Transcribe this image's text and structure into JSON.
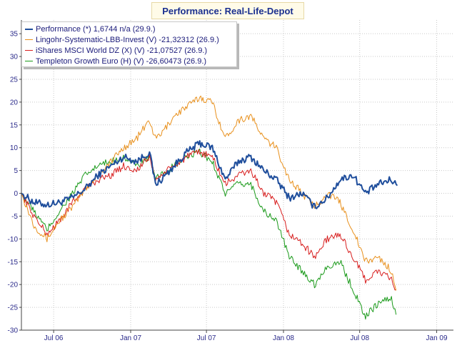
{
  "chart_data": {
    "type": "line",
    "title": "Performance: Real-Life-Depot",
    "ylim": [
      -30,
      38
    ],
    "yticks": [
      35,
      30,
      25,
      20,
      15,
      10,
      5,
      0,
      -5,
      -10,
      -15,
      -20,
      -25,
      -30
    ],
    "xlim": [
      "2006-04-15",
      "2009-02-10"
    ],
    "xticks": [
      {
        "label": "Jul 06",
        "date": "2006-07-01"
      },
      {
        "label": "Jan 07",
        "date": "2007-01-01"
      },
      {
        "label": "Jul 07",
        "date": "2007-07-01"
      },
      {
        "label": "Jan 08",
        "date": "2008-01-01"
      },
      {
        "label": "Jul 08",
        "date": "2008-07-01"
      },
      {
        "label": "Jan 09",
        "date": "2009-01-01"
      }
    ],
    "grid": true,
    "legend_position": "top-left",
    "series": [
      {
        "name": "Performance (*) 1,6744 n/a (29.9.)",
        "color": "#1f4e9c",
        "points": [
          [
            "2006-04-15",
            0
          ],
          [
            "2006-05-15",
            -2
          ],
          [
            "2006-06-15",
            -2.5
          ],
          [
            "2006-07-15",
            -2
          ],
          [
            "2006-08-15",
            -1
          ],
          [
            "2006-09-15",
            1
          ],
          [
            "2006-10-15",
            4
          ],
          [
            "2006-11-15",
            6
          ],
          [
            "2006-12-15",
            8
          ],
          [
            "2007-01-15",
            7
          ],
          [
            "2007-02-15",
            9
          ],
          [
            "2007-03-01",
            2
          ],
          [
            "2007-03-15",
            3
          ],
          [
            "2007-04-15",
            6
          ],
          [
            "2007-05-15",
            9
          ],
          [
            "2007-06-15",
            11
          ],
          [
            "2007-07-15",
            10
          ],
          [
            "2007-08-15",
            3
          ],
          [
            "2007-09-15",
            7
          ],
          [
            "2007-10-15",
            8
          ],
          [
            "2007-11-15",
            5
          ],
          [
            "2007-12-15",
            3
          ],
          [
            "2008-01-15",
            -1
          ],
          [
            "2008-02-15",
            0
          ],
          [
            "2008-03-15",
            -3
          ],
          [
            "2008-04-15",
            -1
          ],
          [
            "2008-05-15",
            3
          ],
          [
            "2008-06-15",
            4
          ],
          [
            "2008-07-15",
            0
          ],
          [
            "2008-08-15",
            2
          ],
          [
            "2008-09-15",
            3
          ],
          [
            "2008-09-29",
            1.7
          ]
        ]
      },
      {
        "name": "Lingohr-Systematic-LBB-Invest (V) -21,32312 (26.9.)",
        "color": "#e8901c",
        "points": [
          [
            "2006-04-15",
            0
          ],
          [
            "2006-05-15",
            -7
          ],
          [
            "2006-06-15",
            -10
          ],
          [
            "2006-07-15",
            -6
          ],
          [
            "2006-08-15",
            -3
          ],
          [
            "2006-09-15",
            1
          ],
          [
            "2006-10-15",
            4
          ],
          [
            "2006-11-15",
            7
          ],
          [
            "2006-12-15",
            10
          ],
          [
            "2007-01-15",
            12
          ],
          [
            "2007-02-15",
            16
          ],
          [
            "2007-03-01",
            12
          ],
          [
            "2007-03-15",
            13
          ],
          [
            "2007-04-15",
            17
          ],
          [
            "2007-05-15",
            19
          ],
          [
            "2007-06-15",
            21
          ],
          [
            "2007-07-15",
            20
          ],
          [
            "2007-08-15",
            12
          ],
          [
            "2007-09-15",
            16
          ],
          [
            "2007-10-15",
            17
          ],
          [
            "2007-11-15",
            12
          ],
          [
            "2007-12-15",
            10
          ],
          [
            "2008-01-15",
            3
          ],
          [
            "2008-02-15",
            0
          ],
          [
            "2008-03-15",
            -3
          ],
          [
            "2008-04-15",
            0
          ],
          [
            "2008-05-15",
            -2
          ],
          [
            "2008-06-15",
            -8
          ],
          [
            "2008-07-15",
            -15
          ],
          [
            "2008-08-15",
            -14
          ],
          [
            "2008-09-15",
            -17
          ],
          [
            "2008-09-26",
            -21.3
          ]
        ]
      },
      {
        "name": "iShares MSCI World DZ (X) (V) -21,07527 (26.9.)",
        "color": "#d81f1f",
        "points": [
          [
            "2006-04-15",
            0
          ],
          [
            "2006-05-15",
            -5
          ],
          [
            "2006-06-15",
            -9
          ],
          [
            "2006-07-15",
            -6
          ],
          [
            "2006-08-15",
            -2
          ],
          [
            "2006-09-15",
            1
          ],
          [
            "2006-10-15",
            3
          ],
          [
            "2006-11-15",
            4
          ],
          [
            "2006-12-15",
            6
          ],
          [
            "2007-01-15",
            5
          ],
          [
            "2007-02-15",
            8
          ],
          [
            "2007-03-01",
            3
          ],
          [
            "2007-03-15",
            4
          ],
          [
            "2007-04-15",
            6
          ],
          [
            "2007-05-15",
            8
          ],
          [
            "2007-06-15",
            9
          ],
          [
            "2007-07-15",
            8
          ],
          [
            "2007-08-15",
            2
          ],
          [
            "2007-09-15",
            4
          ],
          [
            "2007-10-15",
            5
          ],
          [
            "2007-11-15",
            0
          ],
          [
            "2007-12-15",
            -2
          ],
          [
            "2008-01-15",
            -9
          ],
          [
            "2008-02-15",
            -11
          ],
          [
            "2008-03-15",
            -14
          ],
          [
            "2008-04-15",
            -10
          ],
          [
            "2008-05-15",
            -9
          ],
          [
            "2008-06-15",
            -14
          ],
          [
            "2008-07-15",
            -19
          ],
          [
            "2008-08-15",
            -17
          ],
          [
            "2008-09-15",
            -19
          ],
          [
            "2008-09-26",
            -21.1
          ]
        ]
      },
      {
        "name": "Templeton Growth Euro (H) (V) -26,60473 (26.9.)",
        "color": "#1a9a1a",
        "points": [
          [
            "2006-04-15",
            0
          ],
          [
            "2006-05-15",
            -4
          ],
          [
            "2006-06-15",
            -8
          ],
          [
            "2006-07-15",
            -4
          ],
          [
            "2006-08-15",
            0
          ],
          [
            "2006-09-15",
            4
          ],
          [
            "2006-10-15",
            6
          ],
          [
            "2006-11-15",
            7
          ],
          [
            "2006-12-15",
            8
          ],
          [
            "2007-01-15",
            6
          ],
          [
            "2007-02-15",
            8
          ],
          [
            "2007-03-01",
            3
          ],
          [
            "2007-03-15",
            4
          ],
          [
            "2007-04-15",
            6
          ],
          [
            "2007-05-15",
            8
          ],
          [
            "2007-06-15",
            9
          ],
          [
            "2007-07-15",
            7
          ],
          [
            "2007-08-15",
            0
          ],
          [
            "2007-09-15",
            2
          ],
          [
            "2007-10-15",
            2
          ],
          [
            "2007-11-15",
            -4
          ],
          [
            "2007-12-15",
            -6
          ],
          [
            "2008-01-15",
            -14
          ],
          [
            "2008-02-15",
            -17
          ],
          [
            "2008-03-15",
            -20
          ],
          [
            "2008-04-15",
            -16
          ],
          [
            "2008-05-15",
            -15
          ],
          [
            "2008-06-15",
            -21
          ],
          [
            "2008-07-15",
            -27
          ],
          [
            "2008-08-15",
            -24
          ],
          [
            "2008-09-15",
            -23
          ],
          [
            "2008-09-26",
            -26.6
          ]
        ]
      }
    ]
  }
}
